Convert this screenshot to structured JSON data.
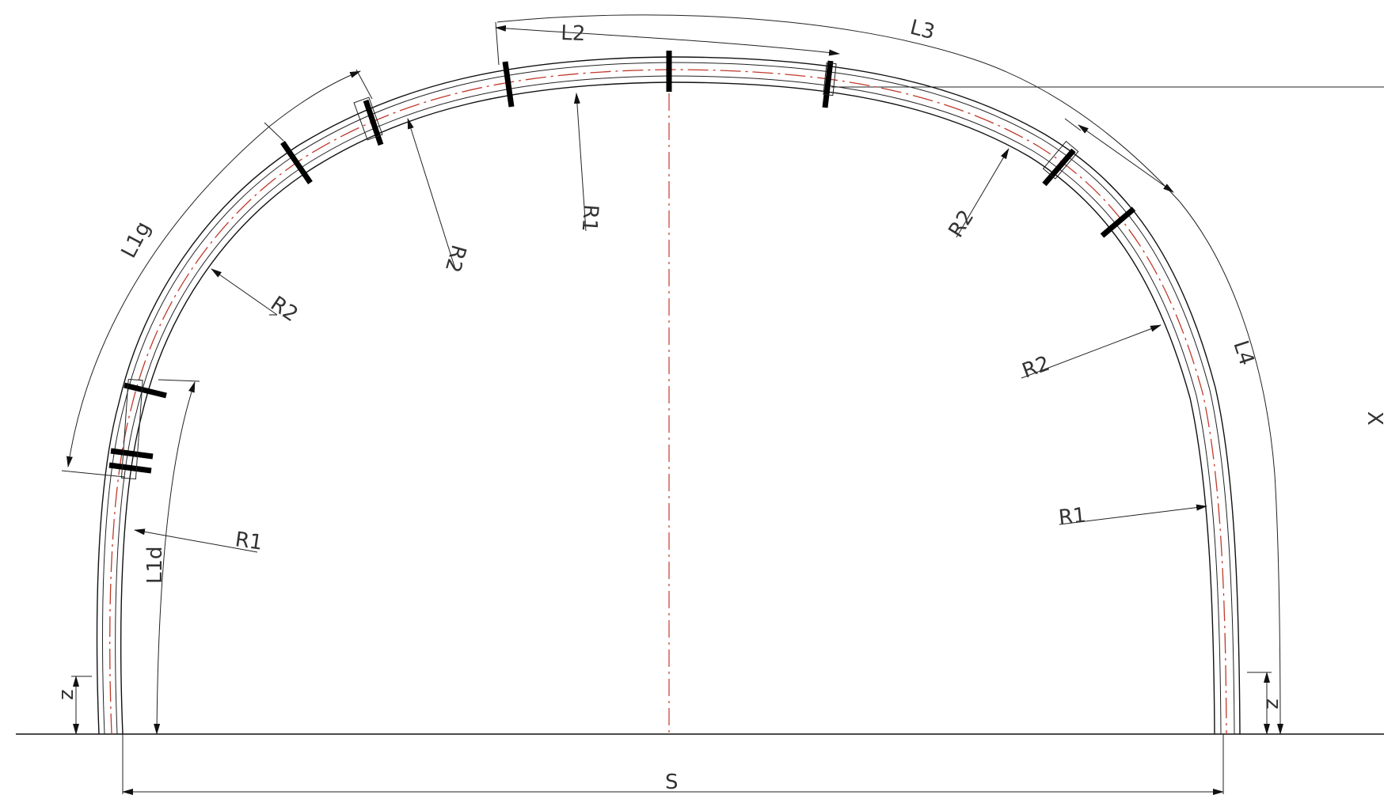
{
  "labels": {
    "L1g": "L1g",
    "L1d": "L1d",
    "L2": "L2",
    "L3": "L3",
    "L4": "L4",
    "R1": "R1",
    "R2": "R2",
    "S": "S",
    "z": "z",
    "X": "X"
  },
  "colors": {
    "outline": "#111111",
    "centerline": "#c0392b",
    "joint": "#000000"
  }
}
